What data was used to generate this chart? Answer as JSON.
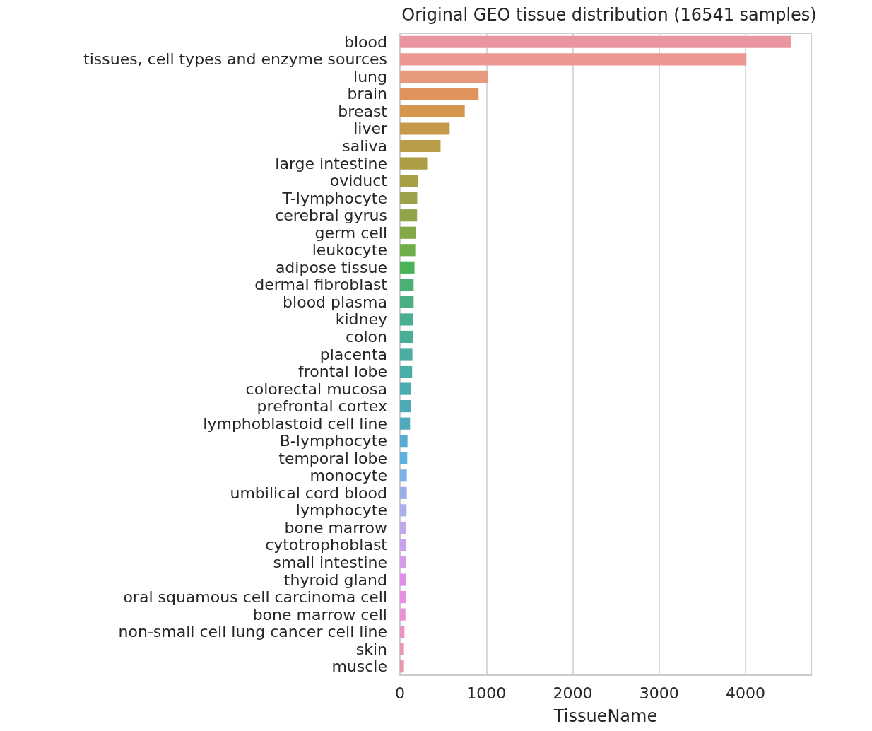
{
  "chart_data": {
    "type": "bar",
    "orientation": "horizontal",
    "title": "Original GEO tissue distribution (16541 samples)",
    "xlabel": "TissueName",
    "categories": [
      "blood",
      "tissues, cell types and enzyme sources",
      "lung",
      "brain",
      "breast",
      "liver",
      "saliva",
      "large intestine",
      "oviduct",
      "T-lymphocyte",
      "cerebral gyrus",
      "germ cell",
      "leukocyte",
      "adipose tissue",
      "dermal fibroblast",
      "blood plasma",
      "kidney",
      "colon",
      "placenta",
      "frontal lobe",
      "colorectal mucosa",
      "prefrontal cortex",
      "lymphoblastoid cell line",
      "B-lymphocyte",
      "temporal lobe",
      "monocyte",
      "umbilical cord blood",
      "lymphocyte",
      "bone marrow",
      "cytotrophoblast",
      "small intestine",
      "thyroid gland",
      "oral squamous cell carcinoma cell",
      "bone marrow cell",
      "non-small cell lung cancer cell line",
      "skin",
      "muscle"
    ],
    "values": [
      4530,
      4010,
      1020,
      910,
      750,
      575,
      470,
      315,
      205,
      200,
      198,
      182,
      177,
      168,
      158,
      158,
      155,
      150,
      144,
      141,
      128,
      125,
      117,
      87,
      84,
      79,
      79,
      76,
      73,
      73,
      71,
      68,
      65,
      63,
      52,
      46,
      46
    ],
    "colors": [
      "#ea96a2",
      "#eb9793",
      "#e79a7d",
      "#e0935a",
      "#d3974e",
      "#c59a4b",
      "#bb9c48",
      "#ad9d47",
      "#a59f46",
      "#9ca24a",
      "#92a44a",
      "#86a748",
      "#6fad4a",
      "#4cb25a",
      "#4cb076",
      "#4baf86",
      "#4aae90",
      "#4aad98",
      "#4aad9f",
      "#4aada6",
      "#4aacad",
      "#4daab4",
      "#50a9bc",
      "#55acd0",
      "#5eb0dd",
      "#7db0e6",
      "#9aaee9",
      "#aaaeec",
      "#bba9ec",
      "#c9a3eb",
      "#d59ce9",
      "#e08fe7",
      "#e78fe0",
      "#e992d2",
      "#ea95c4",
      "#ea96b6",
      "#ea96aa"
    ],
    "xlim": [
      0,
      4760
    ],
    "xticks": [
      0,
      1000,
      2000,
      3000,
      4000
    ],
    "grid": "x"
  }
}
